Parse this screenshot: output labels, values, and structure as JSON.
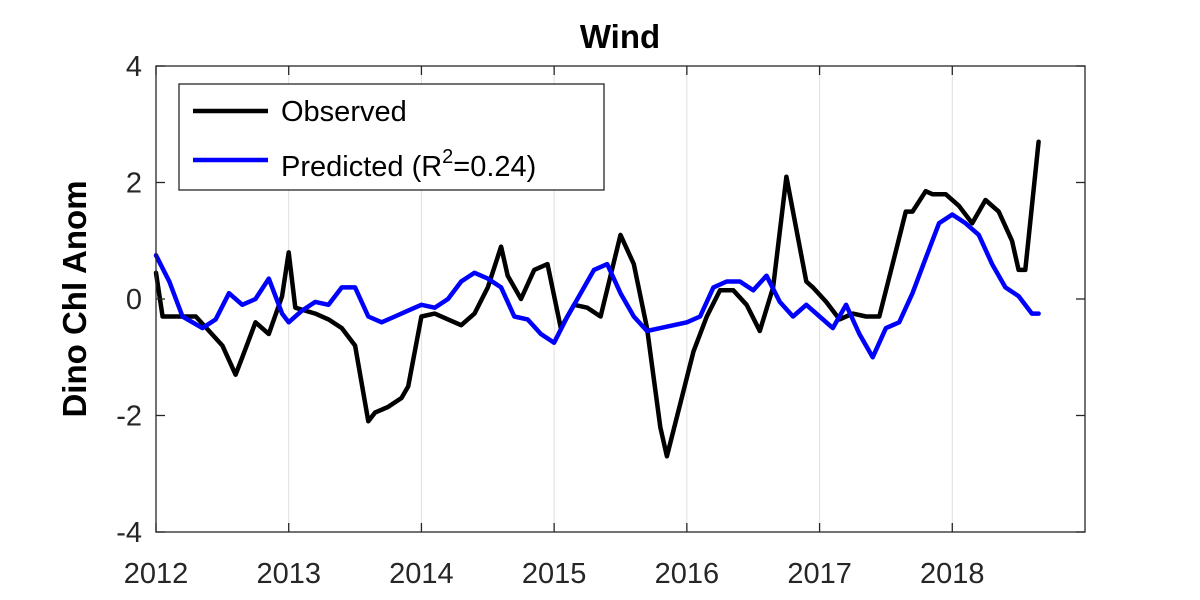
{
  "chart_data": {
    "type": "line",
    "title": "Wind",
    "xlabel": "",
    "ylabel": "Dino Chl Anom",
    "xlim": [
      2012,
      2019
    ],
    "ylim": [
      -4,
      4
    ],
    "xticks": [
      2012,
      2013,
      2014,
      2015,
      2016,
      2017,
      2018
    ],
    "xtick_labels": [
      "2012",
      "2013",
      "2014",
      "2015",
      "2016",
      "2017",
      "2018"
    ],
    "yticks": [
      -4,
      -2,
      0,
      2,
      4
    ],
    "ytick_labels": [
      "-4",
      "-2",
      "0",
      "2",
      "4"
    ],
    "grid": "vertical",
    "legend_placement": "top-left",
    "series": [
      {
        "name": "Observed",
        "color": "#000000",
        "x": [
          2012.0,
          2012.05,
          2012.15,
          2012.3,
          2012.4,
          2012.5,
          2012.6,
          2012.65,
          2012.75,
          2012.85,
          2012.95,
          2013.0,
          2013.05,
          2013.2,
          2013.3,
          2013.4,
          2013.5,
          2013.6,
          2013.65,
          2013.75,
          2013.85,
          2013.9,
          2014.0,
          2014.1,
          2014.2,
          2014.3,
          2014.4,
          2014.5,
          2014.6,
          2014.65,
          2014.75,
          2014.85,
          2014.95,
          2015.05,
          2015.15,
          2015.25,
          2015.35,
          2015.5,
          2015.6,
          2015.7,
          2015.8,
          2015.85,
          2015.95,
          2016.05,
          2016.15,
          2016.25,
          2016.35,
          2016.45,
          2016.55,
          2016.65,
          2016.75,
          2016.8,
          2016.9,
          2016.95,
          2017.05,
          2017.15,
          2017.25,
          2017.35,
          2017.45,
          2017.55,
          2017.65,
          2017.7,
          2017.8,
          2017.85,
          2017.95,
          2018.05,
          2018.15,
          2018.25,
          2018.35,
          2018.45,
          2018.5,
          2018.55,
          2018.65
        ],
        "values": [
          0.45,
          -0.3,
          -0.3,
          -0.3,
          -0.55,
          -0.8,
          -1.3,
          -1.0,
          -0.4,
          -0.6,
          0.05,
          0.8,
          -0.15,
          -0.25,
          -0.35,
          -0.5,
          -0.8,
          -2.1,
          -1.95,
          -1.85,
          -1.7,
          -1.5,
          -0.3,
          -0.25,
          -0.35,
          -0.45,
          -0.25,
          0.2,
          0.9,
          0.4,
          0.0,
          0.5,
          0.6,
          -0.5,
          -0.1,
          -0.15,
          -0.3,
          1.1,
          0.6,
          -0.5,
          -2.2,
          -2.7,
          -1.8,
          -0.9,
          -0.3,
          0.15,
          0.15,
          -0.1,
          -0.55,
          0.2,
          2.1,
          1.5,
          0.3,
          0.2,
          -0.05,
          -0.35,
          -0.25,
          -0.3,
          -0.3,
          0.6,
          1.5,
          1.5,
          1.85,
          1.8,
          1.8,
          1.6,
          1.3,
          1.7,
          1.5,
          1.0,
          0.5,
          0.5,
          2.7
        ]
      },
      {
        "name": "Predicted (R",
        "name_sup": "2",
        "name_suffix": "=0.24)",
        "color": "#0000ff",
        "x": [
          2012.0,
          2012.1,
          2012.2,
          2012.35,
          2012.45,
          2012.55,
          2012.65,
          2012.75,
          2012.85,
          2012.95,
          2013.0,
          2013.1,
          2013.2,
          2013.3,
          2013.4,
          2013.5,
          2013.6,
          2013.7,
          2013.8,
          2013.9,
          2014.0,
          2014.1,
          2014.2,
          2014.3,
          2014.4,
          2014.5,
          2014.6,
          2014.7,
          2014.8,
          2014.9,
          2015.0,
          2015.1,
          2015.2,
          2015.3,
          2015.4,
          2015.5,
          2015.6,
          2015.7,
          2015.8,
          2015.9,
          2016.0,
          2016.1,
          2016.2,
          2016.3,
          2016.4,
          2016.5,
          2016.6,
          2016.7,
          2016.8,
          2016.9,
          2017.0,
          2017.1,
          2017.2,
          2017.3,
          2017.4,
          2017.5,
          2017.6,
          2017.7,
          2017.8,
          2017.9,
          2018.0,
          2018.1,
          2018.2,
          2018.3,
          2018.4,
          2018.5,
          2018.6,
          2018.65
        ],
        "values": [
          0.75,
          0.3,
          -0.3,
          -0.5,
          -0.35,
          0.1,
          -0.1,
          0.0,
          0.35,
          -0.25,
          -0.4,
          -0.2,
          -0.05,
          -0.1,
          0.2,
          0.2,
          -0.3,
          -0.4,
          -0.3,
          -0.2,
          -0.1,
          -0.15,
          0.0,
          0.3,
          0.45,
          0.35,
          0.2,
          -0.3,
          -0.35,
          -0.6,
          -0.75,
          -0.3,
          0.1,
          0.5,
          0.6,
          0.1,
          -0.3,
          -0.55,
          -0.5,
          -0.45,
          -0.4,
          -0.3,
          0.2,
          0.3,
          0.3,
          0.15,
          0.4,
          -0.05,
          -0.3,
          -0.1,
          -0.3,
          -0.5,
          -0.1,
          -0.6,
          -1.0,
          -0.5,
          -0.4,
          0.1,
          0.7,
          1.3,
          1.45,
          1.3,
          1.1,
          0.6,
          0.2,
          0.05,
          -0.25,
          -0.25
        ]
      }
    ]
  }
}
